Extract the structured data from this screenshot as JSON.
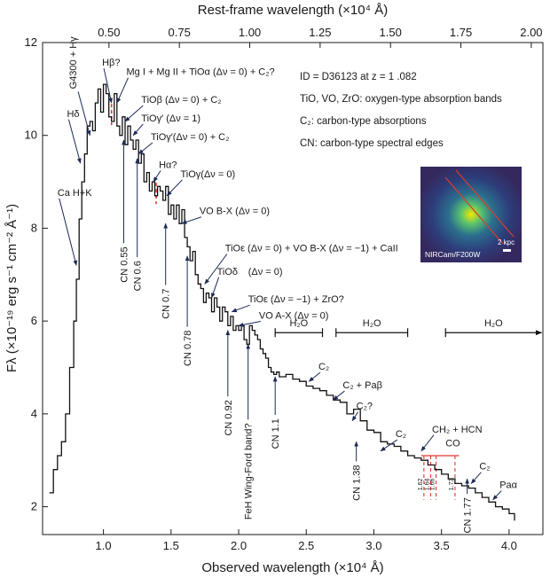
{
  "chart_data": {
    "type": "line",
    "xlabel": "Observed wavelength (×10⁴ Å)",
    "ylabel": "Fλ (×10⁻¹⁹ erg s⁻¹ cm⁻² Å⁻¹)",
    "top_xlabel": "Rest-frame wavelength (×10⁴ Å)",
    "xlim": [
      0.55,
      4.25
    ],
    "ylim": [
      1.4,
      12.0
    ],
    "redshift": 1.082,
    "x_ticks": [
      {
        "v": 1.0,
        "t": "1.0"
      },
      {
        "v": 1.5,
        "t": "1.5"
      },
      {
        "v": 2.0,
        "t": "2.0"
      },
      {
        "v": 2.5,
        "t": "2.5"
      },
      {
        "v": 3.0,
        "t": "3.0"
      },
      {
        "v": 3.5,
        "t": "3.5"
      },
      {
        "v": 4.0,
        "t": "4.0"
      }
    ],
    "y_ticks": [
      {
        "v": 2,
        "t": "2"
      },
      {
        "v": 4,
        "t": "4"
      },
      {
        "v": 6,
        "t": "6"
      },
      {
        "v": 8,
        "t": "8"
      },
      {
        "v": 10,
        "t": "10"
      },
      {
        "v": 12,
        "t": "12"
      }
    ],
    "top_ticks": [
      {
        "v": 0.5,
        "t": "0.50"
      },
      {
        "v": 0.75,
        "t": "0.75"
      },
      {
        "v": 1.0,
        "t": "1.00"
      },
      {
        "v": 1.25,
        "t": "1.25"
      },
      {
        "v": 1.5,
        "t": "1.50"
      },
      {
        "v": 1.75,
        "t": "1.75"
      },
      {
        "v": 2.0,
        "t": "2.00"
      }
    ],
    "series": [
      {
        "color": "#111111",
        "x": [
          0.6,
          0.63,
          0.66,
          0.69,
          0.72,
          0.75,
          0.78,
          0.8,
          0.82,
          0.84,
          0.86,
          0.88,
          0.9,
          0.92,
          0.94,
          0.96,
          0.98,
          1.0,
          1.02,
          1.04,
          1.06,
          1.08,
          1.1,
          1.12,
          1.14,
          1.16,
          1.18,
          1.2,
          1.22,
          1.24,
          1.26,
          1.28,
          1.3,
          1.32,
          1.34,
          1.36,
          1.38,
          1.4,
          1.42,
          1.44,
          1.46,
          1.48,
          1.5,
          1.52,
          1.54,
          1.56,
          1.58,
          1.6,
          1.62,
          1.64,
          1.66,
          1.68,
          1.7,
          1.72,
          1.74,
          1.76,
          1.78,
          1.8,
          1.82,
          1.84,
          1.86,
          1.88,
          1.9,
          1.92,
          1.94,
          1.96,
          1.98,
          2.0,
          2.02,
          2.04,
          2.06,
          2.08,
          2.1,
          2.12,
          2.14,
          2.16,
          2.18,
          2.2,
          2.22,
          2.24,
          2.26,
          2.28,
          2.3,
          2.35,
          2.4,
          2.45,
          2.5,
          2.55,
          2.6,
          2.65,
          2.7,
          2.75,
          2.8,
          2.85,
          2.9,
          2.95,
          3.0,
          3.05,
          3.1,
          3.15,
          3.2,
          3.25,
          3.3,
          3.35,
          3.4,
          3.45,
          3.5,
          3.55,
          3.6,
          3.65,
          3.7,
          3.75,
          3.8,
          3.85,
          3.9,
          3.95,
          4.0,
          4.04
        ],
        "y": [
          2.3,
          2.8,
          3.1,
          3.4,
          4.0,
          5.0,
          6.0,
          6.9,
          8.2,
          9.0,
          9.6,
          10.2,
          10.3,
          10.1,
          10.7,
          11.0,
          10.5,
          11.1,
          10.9,
          10.4,
          10.3,
          10.9,
          10.2,
          10.0,
          10.4,
          9.8,
          10.2,
          9.9,
          9.7,
          9.9,
          9.4,
          9.6,
          9.0,
          9.2,
          8.8,
          9.0,
          8.7,
          8.9,
          8.8,
          8.6,
          8.9,
          8.3,
          8.5,
          8.2,
          8.5,
          8.1,
          8.4,
          7.8,
          7.6,
          7.3,
          7.5,
          7.0,
          6.8,
          6.7,
          6.4,
          6.6,
          6.5,
          6.2,
          6.5,
          6.3,
          6.0,
          6.3,
          6.2,
          5.9,
          6.1,
          5.8,
          5.9,
          5.8,
          5.9,
          5.6,
          5.5,
          5.9,
          5.8,
          5.7,
          5.6,
          5.4,
          5.3,
          5.2,
          5.0,
          4.9,
          4.85,
          4.9,
          4.8,
          4.85,
          4.75,
          4.7,
          4.6,
          4.55,
          4.5,
          4.4,
          4.3,
          4.25,
          4.0,
          4.1,
          3.85,
          3.65,
          3.6,
          3.4,
          3.35,
          3.3,
          3.2,
          3.1,
          3.05,
          3.0,
          2.9,
          2.8,
          2.7,
          2.6,
          2.5,
          2.45,
          2.4,
          2.3,
          2.2,
          2.1,
          2.0,
          1.95,
          1.85,
          1.7
        ]
      }
    ],
    "annotations": [
      {
        "text": "Ca H+K",
        "tx": 0.66,
        "ty": 8.7,
        "ax": 0.8,
        "ay": 7.2
      },
      {
        "text": "Hδ",
        "tx": 0.73,
        "ty": 10.4,
        "ax": 0.83,
        "ay": 9.4
      },
      {
        "text": "G4300 + Hγ",
        "tx": 0.8,
        "ty": 11.0,
        "ax": 0.9,
        "ay": 10.0,
        "rot": -90
      },
      {
        "text": "Hβ?",
        "tx": 0.99,
        "ty": 11.5,
        "ax": 1.06,
        "ay": 10.7
      },
      {
        "text": "Mg I + Mg II + TiOα (Δν = 0) + C₂?",
        "tx": 1.17,
        "ty": 11.3,
        "ax": 1.1,
        "ay": 10.7
      },
      {
        "text": "TiOβ (Δν = 0) + C₂",
        "tx": 1.28,
        "ty": 10.7,
        "ax": 1.16,
        "ay": 10.3
      },
      {
        "text": "TiOγ′ (Δν = 1)",
        "tx": 1.28,
        "ty": 10.3,
        "ax": 1.22,
        "ay": 10.0
      },
      {
        "text": "TiOγ′(Δν = 0) + C₂",
        "tx": 1.35,
        "ty": 9.9,
        "ax": 1.26,
        "ay": 9.6
      },
      {
        "text": "Hα?",
        "tx": 1.41,
        "ty": 9.3,
        "ax": 1.37,
        "ay": 9.0
      },
      {
        "text": "TiOγ(Δν = 0)",
        "tx": 1.57,
        "ty": 9.1,
        "ax": 1.47,
        "ay": 8.7
      },
      {
        "text": "VO B-X (Δν = 0)",
        "tx": 1.71,
        "ty": 8.3,
        "ax": 1.58,
        "ay": 8.1
      },
      {
        "text": "TiOε (Δν = 0) + VO B-X (Δν = −1) + CaII",
        "tx": 1.9,
        "ty": 7.5,
        "ax": 1.75,
        "ay": 6.8
      },
      {
        "text": "TiOδ",
        "tx": 1.84,
        "ty": 7.0,
        "ax": 1.8,
        "ay": 6.5
      },
      {
        "text": "(Δν = 0)",
        "tx": 2.07,
        "ty": 7.0
      },
      {
        "text": "TiOε (Δν = −1) + ZrO?",
        "tx": 2.07,
        "ty": 6.4,
        "ax": 1.95,
        "ay": 6.2
      },
      {
        "text": "VO A-X (Δν = 0)",
        "tx": 2.15,
        "ty": 6.05,
        "ax": 2.0,
        "ay": 5.9
      },
      {
        "text": "C₂",
        "tx": 2.59,
        "ty": 4.95,
        "ax": 2.52,
        "ay": 4.7
      },
      {
        "text": "C₂ + Paβ",
        "tx": 2.77,
        "ty": 4.55,
        "ax": 2.7,
        "ay": 4.3
      },
      {
        "text": "C₂?",
        "tx": 2.87,
        "ty": 4.1,
        "ax": 2.84,
        "ay": 3.85
      },
      {
        "text": "C₂",
        "tx": 3.16,
        "ty": 3.5,
        "ax": 3.05,
        "ay": 3.2
      },
      {
        "text": "CH₂ + HCN",
        "tx": 3.43,
        "ty": 3.6,
        "ax": 3.35,
        "ay": 3.2
      },
      {
        "text": "CO",
        "tx": 3.53,
        "ty": 3.3
      },
      {
        "text": "C₂",
        "tx": 3.78,
        "ty": 2.8,
        "ax": 3.72,
        "ay": 2.5
      },
      {
        "text": "Paα",
        "tx": 3.93,
        "ty": 2.4,
        "ax": 3.88,
        "ay": 2.15
      }
    ],
    "cn_edges": [
      {
        "text": "CN 0.55",
        "x": 1.15,
        "ty": 7.6,
        "ay": 9.9
      },
      {
        "text": "CN 0.6",
        "x": 1.25,
        "ty": 7.3,
        "ay": 9.5
      },
      {
        "text": "CN 0.7",
        "x": 1.46,
        "ty": 6.7,
        "ay": 8.1
      },
      {
        "text": "CN 0.78",
        "x": 1.62,
        "ty": 5.8,
        "ay": 7.4
      },
      {
        "text": "CN 0.92",
        "x": 1.92,
        "ty": 4.3,
        "ay": 5.8
      },
      {
        "text": "FeH Wing-Ford band?",
        "x": 2.07,
        "ty": 3.8,
        "ay": 5.5
      },
      {
        "text": "CN 1.1",
        "x": 2.27,
        "ty": 3.9,
        "ay": 4.8
      },
      {
        "text": "CN 1.38",
        "x": 2.87,
        "ty": 2.9,
        "ay": 3.4
      },
      {
        "text": "CN\n1.77",
        "x": 3.69,
        "ty": 2.2,
        "ay": 2.6
      }
    ],
    "water_bands": [
      {
        "label": "H₂O",
        "x1": 2.27,
        "x2": 2.62,
        "y": 5.75
      },
      {
        "label": "H₂O",
        "x1": 2.72,
        "x2": 3.25,
        "y": 5.75
      },
      {
        "label": "H₂O",
        "x1": 3.53,
        "x2": 4.25,
        "y": 5.75,
        "arrow": true
      }
    ],
    "co_labels": [
      "1.62",
      "1.64",
      "1.66",
      "1.73"
    ],
    "co_x": [
      3.37,
      3.42,
      3.46,
      3.6
    ],
    "dashed_red": [
      {
        "x": 1.06,
        "y": 10.45
      },
      {
        "x": 1.39,
        "y": 8.75
      }
    ],
    "info_lines": [
      "ID = D36123 at z = 1 .082",
      "TiO, VO, ZrO: oxygen-type absorption bands",
      "C₂: carbon-type absorptions",
      "CN: carbon-type spectral edges"
    ],
    "inset": {
      "label": "NIRCam/F200W",
      "scale": "2 kpc"
    }
  }
}
